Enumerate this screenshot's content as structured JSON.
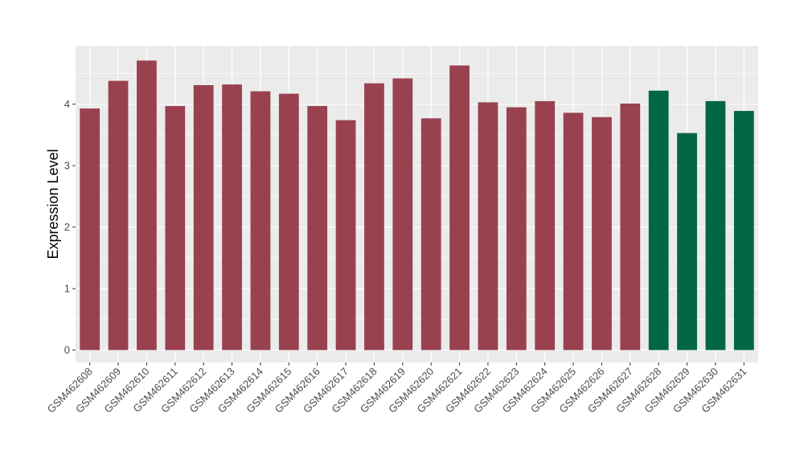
{
  "chart_data": {
    "type": "bar",
    "title": "",
    "xlabel": "",
    "ylabel": "Expression Level",
    "ylim": [
      -0.2,
      4.95
    ],
    "yticks": [
      0,
      1,
      2,
      3,
      4
    ],
    "grid": true,
    "categories": [
      "GSM462608",
      "GSM462609",
      "GSM462610",
      "GSM462611",
      "GSM462612",
      "GSM462613",
      "GSM462614",
      "GSM462615",
      "GSM462616",
      "GSM462617",
      "GSM462618",
      "GSM462619",
      "GSM462620",
      "GSM462621",
      "GSM462622",
      "GSM462623",
      "GSM462624",
      "GSM462625",
      "GSM462626",
      "GSM462627",
      "GSM462628",
      "GSM462629",
      "GSM462630",
      "GSM462631"
    ],
    "values": [
      3.93,
      4.38,
      4.71,
      3.97,
      4.31,
      4.32,
      4.21,
      4.17,
      3.97,
      3.74,
      4.34,
      4.42,
      3.77,
      4.63,
      4.03,
      3.95,
      4.05,
      3.86,
      3.79,
      4.01,
      4.22,
      3.53,
      4.05,
      3.89
    ],
    "group_colors": [
      "#99414f",
      "#99414f",
      "#99414f",
      "#99414f",
      "#99414f",
      "#99414f",
      "#99414f",
      "#99414f",
      "#99414f",
      "#99414f",
      "#99414f",
      "#99414f",
      "#99414f",
      "#99414f",
      "#99414f",
      "#99414f",
      "#99414f",
      "#99414f",
      "#99414f",
      "#99414f",
      "#006644",
      "#006644",
      "#006644",
      "#006644"
    ],
    "panel_background": "#ebebeb",
    "gridline_color": "#ffffff"
  }
}
